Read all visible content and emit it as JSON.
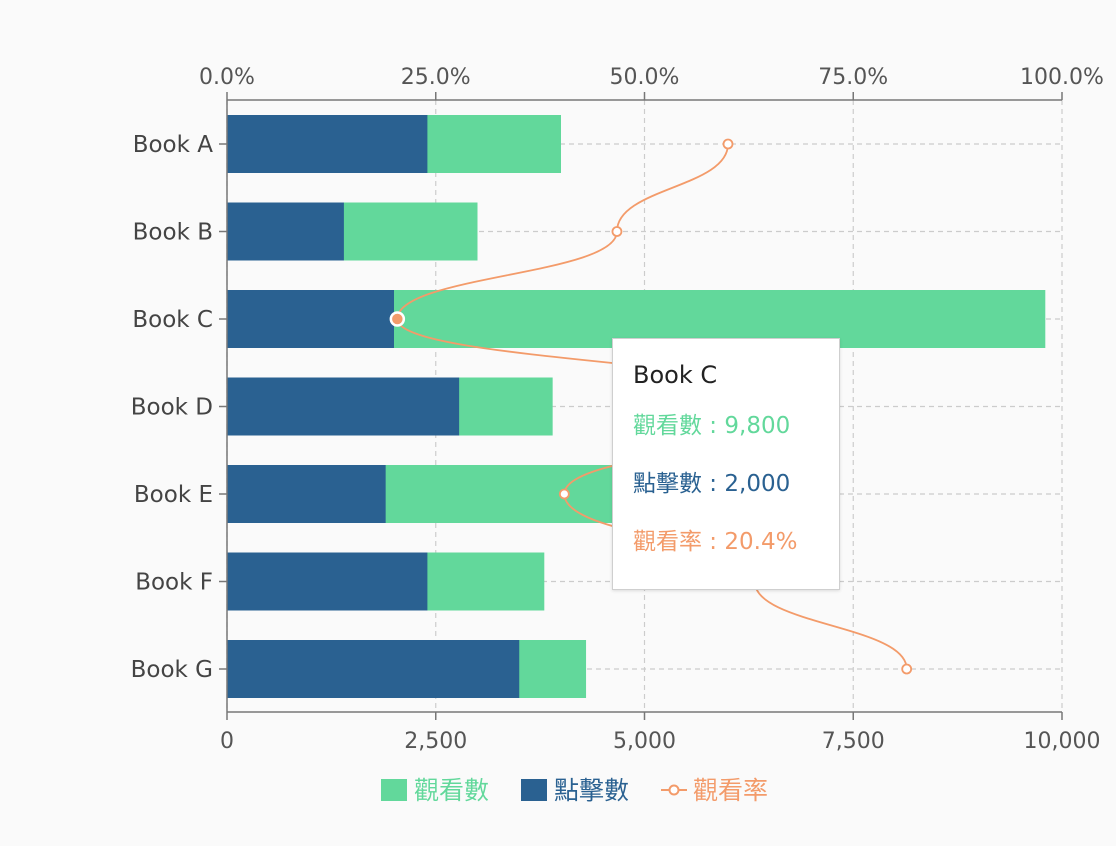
{
  "chart_data": {
    "type": "bar",
    "orientation": "horizontal",
    "stacked": false,
    "categories": [
      "Book A",
      "Book B",
      "Book C",
      "Book D",
      "Book E",
      "Book F",
      "Book G"
    ],
    "series": [
      {
        "name": "觀看數",
        "type": "bar",
        "axis": "bottom",
        "color": "#62d89b",
        "values": [
          4000,
          3000,
          9800,
          3900,
          4700,
          3800,
          4300
        ]
      },
      {
        "name": "點擊數",
        "type": "bar",
        "axis": "bottom",
        "color": "#2a6191",
        "values": [
          2400,
          1400,
          2000,
          2780,
          1900,
          2400,
          3500
        ]
      },
      {
        "name": "觀看率",
        "type": "line",
        "axis": "top",
        "color": "#f39b6a",
        "values": [
          60.0,
          46.7,
          20.4,
          71.3,
          40.4,
          63.2,
          81.4
        ]
      }
    ],
    "bottom_axis": {
      "min": 0,
      "max": 10000,
      "ticks": [
        "0",
        "2,500",
        "5,000",
        "7,500",
        "10,000"
      ]
    },
    "top_axis": {
      "min": 0,
      "max": 100,
      "ticks": [
        "0.0%",
        "25.0%",
        "50.0%",
        "75.0%",
        "100.0%"
      ]
    },
    "grid": true,
    "legend": {
      "position": "bottom",
      "items": [
        "觀看數",
        "點擊數",
        "觀看率"
      ]
    },
    "tooltip": {
      "title": "Book C",
      "rows": [
        {
          "label": "觀看數 : 9,800",
          "color": "#62d89b"
        },
        {
          "label": "點擊數 : 2,000",
          "color": "#2a6191"
        },
        {
          "label": "觀看率 : 20.4%",
          "color": "#f39b6a"
        }
      ]
    }
  }
}
